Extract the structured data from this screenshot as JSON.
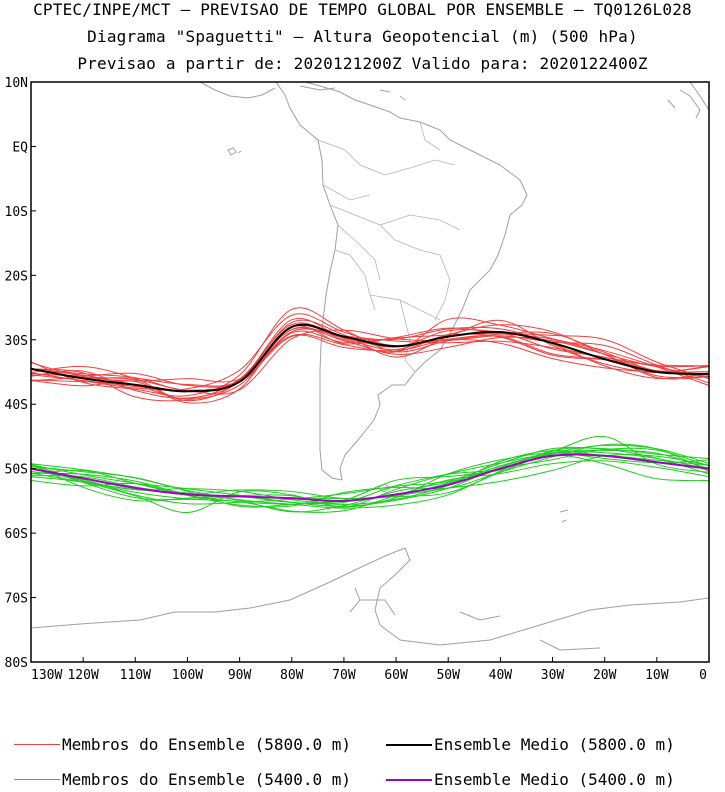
{
  "header": {
    "line1": "CPTEC/INPE/MCT – PREVISAO DE TEMPO GLOBAL POR ENSEMBLE – TQ0126L028",
    "line2": "Diagrama \"Spaguetti\" – Altura Geopotencial (m) (500 hPa)",
    "line3": "Previsao a partir de: 2020121200Z  Valido para: 2020122400Z"
  },
  "map": {
    "lat_ticks": [
      "10N",
      "EQ",
      "10S",
      "20S",
      "30S",
      "40S",
      "50S",
      "60S",
      "70S",
      "80S"
    ],
    "lon_ticks": [
      "130W",
      "120W",
      "110W",
      "100W",
      "90W",
      "80W",
      "70W",
      "60W",
      "50W",
      "40W",
      "30W",
      "20W",
      "10W",
      "0"
    ],
    "lat_range": [
      10,
      -80
    ],
    "lon_range": [
      -130,
      0
    ]
  },
  "legend": {
    "members_5800": "Membros do Ensemble (5800.0 m)",
    "mean_5800": "Ensemble Medio (5800.0 m)",
    "members_5400": "Membros do Ensemble (5400.0 m)",
    "mean_5400": "Ensemble Medio (5400.0 m)"
  },
  "colors": {
    "members_5800": "#f04040",
    "mean_5800": "#000000",
    "members_5400": "#22cc22",
    "mean_5400": "#a000c8",
    "coastline": "#a0a0a0"
  },
  "chart_data": {
    "type": "line",
    "x": [
      -130,
      -120,
      -110,
      -100,
      -90,
      -80,
      -70,
      -60,
      -50,
      -40,
      -30,
      -20,
      -10,
      0
    ],
    "series": [
      {
        "name": "Ensemble Medio (5800.0 m)",
        "values": [
          -34.5,
          -36.0,
          -37.0,
          -38.0,
          -36.5,
          -28.0,
          -29.5,
          -31.0,
          -29.5,
          -28.8,
          -30.5,
          -33.0,
          -35.0,
          -35.3
        ]
      },
      {
        "name": "Ensemble Medio (5400.0 m)",
        "values": [
          -50.0,
          -51.5,
          -53.0,
          -54.0,
          -54.3,
          -54.6,
          -55.0,
          -54.0,
          -52.5,
          -50.0,
          -48.0,
          -48.0,
          -49.0,
          -50.0
        ]
      }
    ]
  }
}
